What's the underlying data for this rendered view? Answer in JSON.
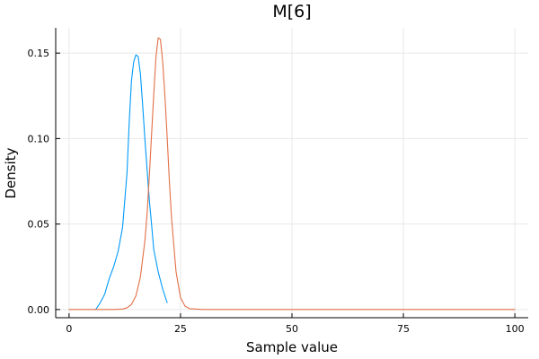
{
  "chart_data": {
    "type": "line",
    "title": "M[6]",
    "xlabel": "Sample value",
    "ylabel": "Density",
    "xlim": [
      -3,
      103
    ],
    "ylim": [
      -0.0048,
      0.1648
    ],
    "xticks": [
      0,
      25,
      50,
      75,
      100
    ],
    "xtick_labels": [
      "0",
      "25",
      "50",
      "75",
      "100"
    ],
    "yticks": [
      0,
      0.05,
      0.1,
      0.15
    ],
    "ytick_labels": [
      "0.00",
      "0.05",
      "0.10",
      "0.15"
    ],
    "grid": true,
    "legend": "none",
    "series": [
      {
        "color": "#009AFA",
        "x": [
          6.0,
          7.0,
          8.0,
          9.0,
          10.0,
          11.0,
          12.0,
          13.0,
          13.5,
          14.0,
          14.5,
          15.0,
          15.5,
          16.0,
          16.5,
          17.0,
          17.5,
          18.0,
          18.5,
          19.0,
          20.0,
          21.0,
          22.0
        ],
        "y": [
          0.0,
          0.004,
          0.009,
          0.018,
          0.025,
          0.034,
          0.048,
          0.08,
          0.11,
          0.134,
          0.145,
          0.149,
          0.148,
          0.138,
          0.12,
          0.1,
          0.082,
          0.064,
          0.05,
          0.035,
          0.022,
          0.012,
          0.004
        ]
      },
      {
        "color": "#E26F46",
        "x": [
          0,
          10,
          12,
          13,
          14,
          15,
          16,
          17,
          17.5,
          18,
          18.5,
          19,
          19.5,
          20,
          20.5,
          21,
          21.5,
          22,
          22.5,
          23,
          24,
          25,
          26,
          27,
          30,
          50,
          100
        ],
        "y": [
          0.0,
          0.0,
          0.0003,
          0.001,
          0.003,
          0.008,
          0.019,
          0.04,
          0.056,
          0.078,
          0.102,
          0.126,
          0.148,
          0.159,
          0.158,
          0.145,
          0.125,
          0.101,
          0.075,
          0.053,
          0.022,
          0.007,
          0.002,
          0.0005,
          0.0,
          0.0,
          0.0
        ]
      }
    ]
  }
}
